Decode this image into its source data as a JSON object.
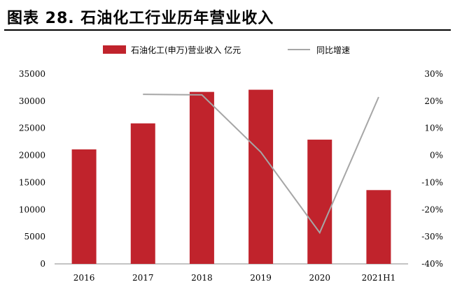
{
  "figure_title": "图表 28. 石油化工行业历年营业收入",
  "chart_data": {
    "type": "bar",
    "categories": [
      "2016",
      "2017",
      "2018",
      "2019",
      "2020",
      "2021H1"
    ],
    "series": [
      {
        "name": "石油化工(申万)营业收入 亿元",
        "type": "bar",
        "axis": "left",
        "color": "#C0232C",
        "values": [
          21100,
          25900,
          31700,
          32100,
          22900,
          13600
        ]
      },
      {
        "name": "同比增速",
        "type": "line",
        "axis": "right",
        "color": "#A6A6A6",
        "values": [
          null,
          0.225,
          0.223,
          0.012,
          -0.285,
          0.215
        ]
      }
    ],
    "y_left": {
      "min": 0,
      "max": 35000,
      "ticks": [
        "0",
        "5000",
        "10000",
        "15000",
        "20000",
        "25000",
        "30000",
        "35000"
      ]
    },
    "y_right": {
      "min": -0.4,
      "max": 0.3,
      "ticks": [
        "-40%",
        "-30%",
        "-20%",
        "-10%",
        "0%",
        "10%",
        "20%",
        "30%"
      ]
    },
    "legend_position": "top-center",
    "grid": false
  }
}
